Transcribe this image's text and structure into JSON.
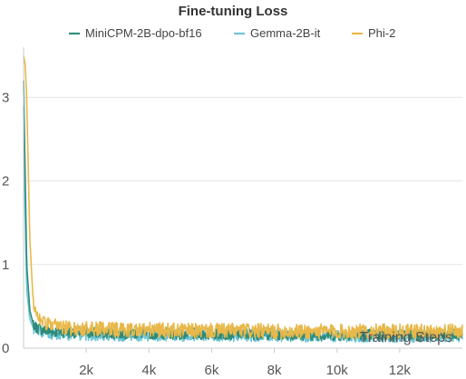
{
  "chart_data": {
    "type": "line",
    "title": "Fine-tuning Loss",
    "xlabel": "Training Steps",
    "ylabel": "",
    "xlim": [
      0,
      14000
    ],
    "ylim": [
      0,
      3.6
    ],
    "x_ticks": [
      2000,
      4000,
      6000,
      8000,
      10000,
      12000
    ],
    "x_tick_labels": [
      "2k",
      "4k",
      "6k",
      "8k",
      "10k",
      "12k"
    ],
    "y_ticks": [
      0,
      1,
      2,
      3
    ],
    "y_tick_labels": [
      "0",
      "1",
      "2",
      "3"
    ],
    "grid": true,
    "legend_position": "top",
    "series": [
      {
        "name": "MiniCPM-2B-dpo-bf16",
        "color": "#2e8b7a",
        "x": [
          0,
          50,
          100,
          200,
          300,
          400,
          600,
          800,
          1000,
          1500,
          2000,
          3000,
          4000,
          5000,
          6000,
          7000,
          8000,
          9000,
          10000,
          11000,
          12000,
          13000,
          14000
        ],
        "y": [
          3.2,
          2.1,
          1.0,
          0.45,
          0.3,
          0.25,
          0.22,
          0.2,
          0.2,
          0.19,
          0.19,
          0.18,
          0.18,
          0.17,
          0.17,
          0.17,
          0.17,
          0.16,
          0.16,
          0.16,
          0.16,
          0.16,
          0.16
        ]
      },
      {
        "name": "Gemma-2B-it",
        "color": "#6ec6d6",
        "x": [
          0,
          50,
          100,
          200,
          300,
          400,
          600,
          800,
          1000,
          1500,
          2000,
          3000,
          4000,
          5000,
          6000,
          7000,
          8000,
          9000,
          10000,
          11000,
          12000,
          13000,
          14000
        ],
        "y": [
          2.9,
          1.6,
          0.7,
          0.35,
          0.25,
          0.2,
          0.18,
          0.17,
          0.17,
          0.16,
          0.16,
          0.15,
          0.15,
          0.15,
          0.15,
          0.15,
          0.15,
          0.14,
          0.14,
          0.14,
          0.14,
          0.14,
          0.14
        ]
      },
      {
        "name": "Phi-2",
        "color": "#e8b84a",
        "x": [
          0,
          50,
          100,
          200,
          300,
          400,
          600,
          800,
          1000,
          1500,
          2000,
          3000,
          4000,
          5000,
          6000,
          7000,
          8000,
          9000,
          10000,
          11000,
          12000,
          13000,
          14000
        ],
        "y": [
          3.5,
          3.4,
          3.0,
          1.3,
          0.6,
          0.4,
          0.32,
          0.28,
          0.26,
          0.24,
          0.23,
          0.22,
          0.22,
          0.21,
          0.21,
          0.21,
          0.2,
          0.2,
          0.2,
          0.2,
          0.2,
          0.2,
          0.2
        ]
      }
    ]
  }
}
